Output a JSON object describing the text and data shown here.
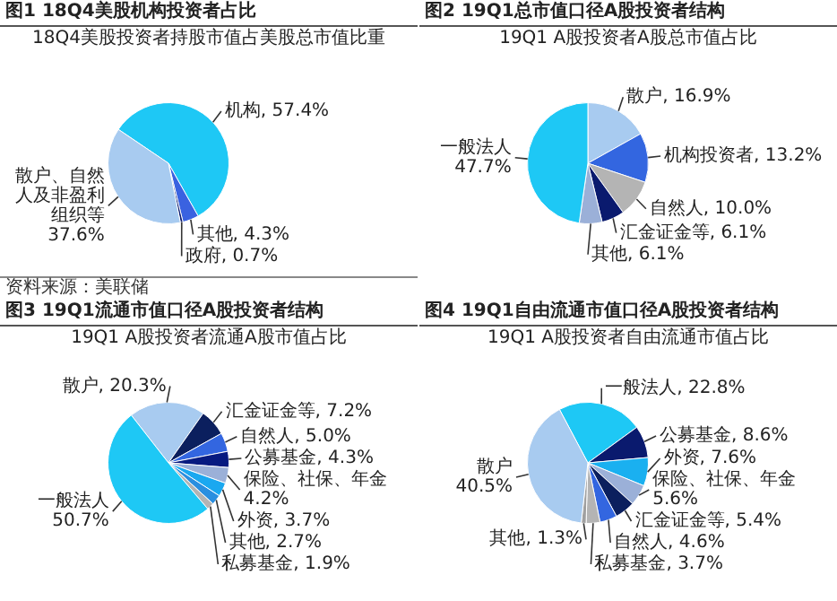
{
  "chart_data": [
    {
      "type": "pie",
      "title": "图1 18Q4美股机构投资者占比",
      "subtitle": "18Q4美股投资者持股市值占美股总市值比重",
      "categories": [
        "机构",
        "其他",
        "政府",
        "散户、自然人及非盈利组织等"
      ],
      "values": [
        57.4,
        4.3,
        0.7,
        37.6
      ],
      "value_labels": [
        "57.4%",
        "4.3%",
        "0.7%",
        "37.6%"
      ],
      "colors": [
        "#1ec8f5",
        "#3a62e0",
        "#0a1a6e",
        "#a8cbf0"
      ],
      "annotations": [
        "资料来源：美联储"
      ]
    },
    {
      "type": "pie",
      "title": "图2 19Q1总市值口径A股投资者结构",
      "subtitle": "19Q1 A股投资者A股总市值占比",
      "categories": [
        "散户",
        "机构投资者",
        "自然人",
        "汇金证金等",
        "其他",
        "一般法人"
      ],
      "values": [
        16.9,
        13.2,
        10.0,
        6.1,
        6.1,
        47.7
      ],
      "value_labels": [
        "16.9%",
        "13.2%",
        "10.0%",
        "6.1%",
        "6.1%",
        "47.7%"
      ],
      "colors": [
        "#a8cbf0",
        "#3366e0",
        "#b4b4b4",
        "#0a1a6e",
        "#9bb0d8",
        "#1ec8f5"
      ]
    },
    {
      "type": "pie",
      "title": "图3 19Q1流通市值口径A股投资者结构",
      "subtitle": "19Q1 A股投资者流通A股市值占比",
      "categories": [
        "散户",
        "汇金证金等",
        "自然人",
        "公募基金",
        "保险、社保、年金",
        "外资",
        "其他",
        "私募基金",
        "一般法人"
      ],
      "values": [
        20.3,
        7.2,
        5.0,
        4.3,
        4.2,
        3.7,
        2.7,
        1.9,
        50.7
      ],
      "value_labels": [
        "20.3%",
        "7.2%",
        "5.0%",
        "4.3%",
        "4.2%",
        "3.7%",
        "2.7%",
        "1.9%",
        "50.7%"
      ],
      "colors": [
        "#a8cbf0",
        "#0b1f5e",
        "#3366e0",
        "#071a80",
        "#9bb0d8",
        "#1aa8f0",
        "#2a8fe0",
        "#b4b4b4",
        "#1ec8f5"
      ]
    },
    {
      "type": "pie",
      "title": "图4 19Q1自由流通市值口径A股投资者结构",
      "subtitle": "19Q1 A股投资者自由流通市值占比",
      "categories": [
        "一般法人",
        "公募基金",
        "外资",
        "保险、社保、年金",
        "汇金证金等",
        "自然人",
        "私募基金",
        "其他",
        "散户"
      ],
      "values": [
        22.8,
        8.6,
        7.6,
        5.6,
        5.4,
        4.6,
        3.7,
        1.3,
        40.5
      ],
      "value_labels": [
        "22.8%",
        "8.6%",
        "7.6%",
        "5.6%",
        "5.4%",
        "4.6%",
        "3.7%",
        "1.3%",
        "40.5%"
      ],
      "colors": [
        "#1ec8f5",
        "#0a1a6e",
        "#1ab0f0",
        "#9bb0d8",
        "#0b1f5e",
        "#3366e0",
        "#b4b4b4",
        "#a0a0a0",
        "#a8cbf0"
      ]
    }
  ]
}
